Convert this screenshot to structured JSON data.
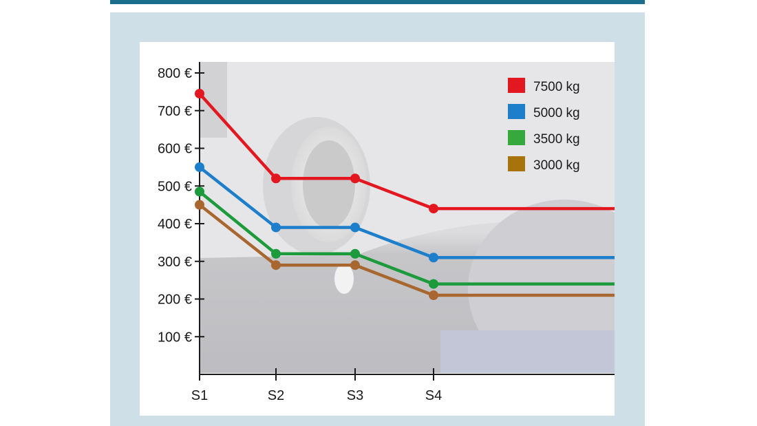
{
  "chart_data": {
    "type": "line",
    "title": "",
    "xlabel": "",
    "ylabel": "",
    "categories": [
      "S1",
      "S2",
      "S3",
      "S4"
    ],
    "y_tick_labels": [
      "100 €",
      "200 €",
      "300 €",
      "400 €",
      "500 €",
      "600 €",
      "700 €",
      "800 €"
    ],
    "y_ticks": [
      100,
      200,
      300,
      400,
      500,
      600,
      700,
      800
    ],
    "ylim": [
      0,
      820
    ],
    "legend_position": "top-right",
    "grid": false,
    "series": [
      {
        "name": "7500 kg",
        "color": "#e3171f",
        "values": [
          745,
          520,
          520,
          440
        ]
      },
      {
        "name": "5000 kg",
        "color": "#1d7fcc",
        "values": [
          550,
          390,
          390,
          310
        ]
      },
      {
        "name": "3500 kg",
        "color": "#1c9a3c",
        "values": [
          485,
          320,
          320,
          240
        ]
      },
      {
        "name": "3000 kg",
        "color": "#a8672f",
        "values": [
          450,
          290,
          290,
          210
        ]
      }
    ],
    "legend_colors": [
      "#e3171f",
      "#1d7fcc",
      "#36a93d",
      "#a7730d"
    ],
    "background_image": "exhaust-pipe-photo"
  }
}
